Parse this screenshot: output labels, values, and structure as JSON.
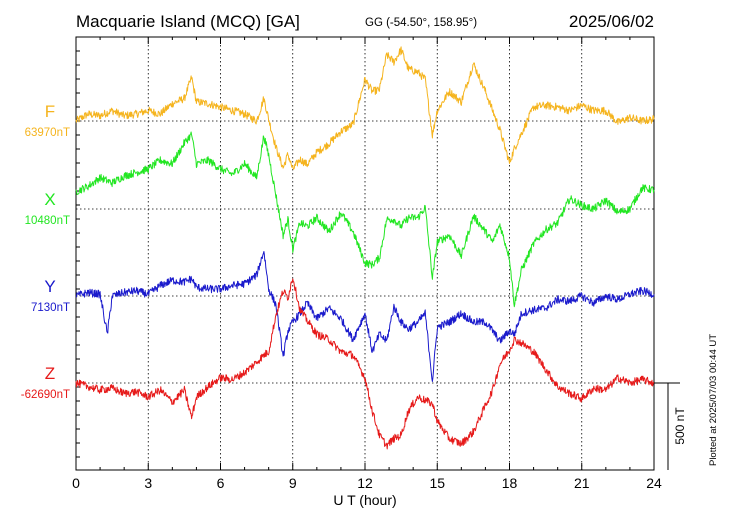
{
  "header": {
    "title": "Macquarie Island (MCQ)  [GA]",
    "coords": "GG (-54.50°, 158.95°)",
    "date": "2025/06/02"
  },
  "footer_note": "Plotted at 2025/07/03 00:44 UT",
  "colors": {
    "F": "#f5b41e",
    "X": "#22e622",
    "Y": "#1a1acc",
    "Z": "#e61a1a",
    "frame": "#000000",
    "grid": "#000000"
  },
  "chart_data": {
    "type": "line",
    "xlabel": "U T (hour)",
    "xlim": [
      0,
      24
    ],
    "xticks": [
      0,
      3,
      6,
      9,
      12,
      15,
      18,
      21,
      24
    ],
    "xtick_labels": [
      "0",
      "3",
      "6",
      "9",
      "12",
      "15",
      "18",
      "21",
      "24"
    ],
    "scale_bar": {
      "label": "500 nT",
      "value_nT": 500
    },
    "series": [
      {
        "name": "F",
        "baseline_label": "63970nT",
        "baseline_nT": 63970,
        "x": [
          0,
          0.5,
          1,
          1.5,
          2,
          2.5,
          3,
          3.5,
          4,
          4.5,
          4.8,
          5,
          5.5,
          6,
          6.5,
          7,
          7.5,
          7.8,
          8,
          8.3,
          8.6,
          8.8,
          9,
          9.3,
          9.6,
          10,
          10.5,
          11,
          11.5,
          12,
          12.3,
          12.6,
          12.9,
          13.2,
          13.5,
          13.8,
          14.2,
          14.5,
          14.8,
          15,
          15.5,
          16,
          16.5,
          17,
          17.3,
          17.6,
          18,
          18.2,
          18.5,
          19,
          19.5,
          20,
          20.5,
          21,
          21.5,
          22,
          22.5,
          23,
          23.5,
          24
        ],
        "y": [
          0,
          40,
          30,
          60,
          30,
          40,
          60,
          40,
          100,
          130,
          250,
          110,
          100,
          80,
          60,
          40,
          0,
          130,
          10,
          -150,
          -270,
          -190,
          -280,
          -220,
          -250,
          -180,
          -130,
          -60,
          -20,
          240,
          170,
          180,
          380,
          340,
          410,
          300,
          280,
          240,
          -80,
          60,
          170,
          110,
          330,
          170,
          60,
          -50,
          -240,
          -160,
          -70,
          80,
          90,
          80,
          60,
          90,
          60,
          60,
          -10,
          20,
          0,
          10
        ]
      },
      {
        "name": "X",
        "baseline_label": "10480nT",
        "baseline_nT": 10480,
        "x": [
          0,
          0.5,
          1,
          1.5,
          2,
          2.5,
          3,
          3.5,
          4,
          4.5,
          4.8,
          5,
          5.5,
          6,
          6.5,
          7,
          7.5,
          7.8,
          8,
          8.3,
          8.6,
          8.8,
          9,
          9.3,
          9.6,
          10,
          10.5,
          11,
          11.5,
          12,
          12.3,
          12.6,
          12.9,
          13.2,
          13.5,
          13.8,
          14.2,
          14.5,
          14.8,
          15,
          15.5,
          16,
          16.5,
          17,
          17.3,
          17.6,
          18,
          18.2,
          18.5,
          19,
          19.5,
          20,
          20.5,
          21,
          21.5,
          22,
          22.5,
          23,
          23.5,
          24
        ],
        "y": [
          100,
          130,
          180,
          150,
          190,
          210,
          230,
          280,
          260,
          380,
          430,
          260,
          280,
          230,
          200,
          260,
          180,
          420,
          310,
          80,
          -150,
          -60,
          -230,
          -80,
          -100,
          -50,
          -130,
          -20,
          -130,
          -310,
          -320,
          -280,
          -60,
          -60,
          -100,
          -50,
          -50,
          10,
          -400,
          -190,
          -150,
          -270,
          -40,
          -130,
          -190,
          -90,
          -280,
          -550,
          -350,
          -200,
          -120,
          -80,
          60,
          20,
          0,
          50,
          -20,
          0,
          120,
          110
        ]
      },
      {
        "name": "Y",
        "baseline_label": "7130nT",
        "baseline_nT": 7130,
        "x": [
          0,
          0.5,
          1,
          1.3,
          1.5,
          2,
          2.5,
          3,
          3.5,
          4,
          4.5,
          4.8,
          5,
          5.5,
          6,
          6.5,
          7,
          7.5,
          7.8,
          8,
          8.3,
          8.6,
          8.8,
          9,
          9.3,
          9.6,
          10,
          10.5,
          11,
          11.5,
          12,
          12.3,
          12.6,
          12.9,
          13.2,
          13.5,
          13.8,
          14.2,
          14.5,
          14.8,
          15,
          15.5,
          16,
          16.5,
          17,
          17.3,
          17.6,
          18,
          18.2,
          18.5,
          19,
          19.5,
          20,
          20.5,
          21,
          21.5,
          22,
          22.5,
          23,
          23.5,
          24
        ],
        "y": [
          0,
          20,
          10,
          -220,
          0,
          20,
          30,
          10,
          60,
          90,
          80,
          100,
          50,
          40,
          40,
          60,
          70,
          120,
          260,
          40,
          -50,
          -350,
          -200,
          -150,
          -100,
          -40,
          -130,
          -70,
          -130,
          -250,
          -100,
          -320,
          -220,
          -260,
          -60,
          -150,
          -190,
          -150,
          -100,
          -490,
          -180,
          -150,
          -100,
          -150,
          -150,
          -200,
          -260,
          -200,
          -220,
          -100,
          -80,
          -70,
          -20,
          -30,
          0,
          -40,
          0,
          -20,
          10,
          30,
          10
        ]
      },
      {
        "name": "Z",
        "baseline_label": "-62690nT",
        "baseline_nT": -62690,
        "x": [
          0,
          0.5,
          1,
          1.5,
          2,
          2.5,
          3,
          3.5,
          4,
          4.5,
          4.8,
          5,
          5.5,
          6,
          6.5,
          7,
          7.5,
          7.8,
          8,
          8.3,
          8.6,
          8.8,
          9,
          9.3,
          9.6,
          10,
          10.5,
          11,
          11.5,
          12,
          12.3,
          12.6,
          12.9,
          13.2,
          13.5,
          13.8,
          14.2,
          14.5,
          14.8,
          15,
          15.5,
          16,
          16.5,
          17,
          17.3,
          17.6,
          18,
          18.2,
          18.5,
          19,
          19.5,
          20,
          20.5,
          21,
          21.5,
          22,
          22.5,
          23,
          23.5,
          24
        ],
        "y": [
          0,
          -20,
          -40,
          -30,
          -60,
          -50,
          -80,
          -40,
          -110,
          -40,
          -200,
          -80,
          -20,
          30,
          20,
          60,
          120,
          160,
          180,
          390,
          530,
          490,
          610,
          420,
          360,
          280,
          250,
          180,
          160,
          30,
          -160,
          -300,
          -360,
          -320,
          -300,
          -160,
          -80,
          -100,
          -120,
          -220,
          -320,
          -350,
          -280,
          -130,
          -40,
          110,
          190,
          250,
          230,
          180,
          80,
          -20,
          -60,
          -90,
          -30,
          -40,
          30,
          0,
          20,
          0
        ]
      }
    ]
  }
}
